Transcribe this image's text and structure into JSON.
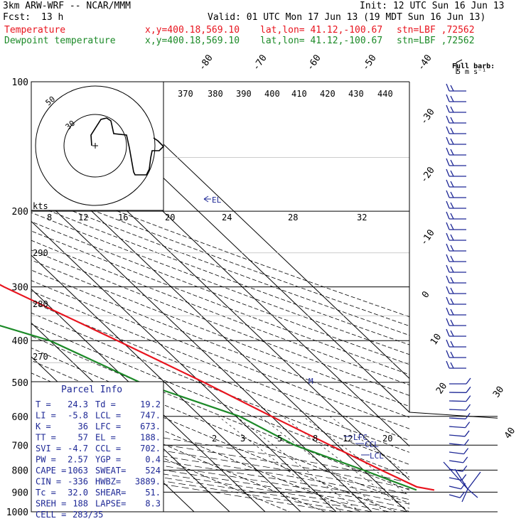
{
  "header": {
    "model": "3km ARW-WRF -- NCAR/MMM",
    "init": "Init: 12 UTC Sun 16 Jun 13",
    "fcst_label": "Fcst:",
    "fcst_value": "13 h",
    "valid": "Valid: 01 UTC Mon 17 Jun 13 (19 MDT Sun 16 Jun 13)",
    "temp_label": "Temperature",
    "dew_label": "Dewpoint temperature",
    "xy": "x,y=400.18,569.10",
    "latlon": "lat,lon= 41.12,-100.67",
    "stn": "stn=LBF ,72562",
    "full_barb": "Full barb:",
    "full_barb_value": "5 m s⁻¹"
  },
  "colors": {
    "temperature": "#e8141e",
    "dewpoint": "#1c8a28",
    "labels": "#1e2896",
    "red_text": "#e8141e",
    "green_text": "#1c8a28"
  },
  "chart_data": {
    "type": "line",
    "pressure_levels": [
      100,
      200,
      300,
      400,
      500,
      600,
      700,
      800,
      900,
      1000
    ],
    "isotherm_labels_top": [
      "-80",
      "-70",
      "-60",
      "-50",
      "-40"
    ],
    "isotherm_labels_right": [
      "-30",
      "-20",
      "-10",
      "0",
      "10",
      "20",
      "30",
      "40"
    ],
    "theta_labels": [
      "370",
      "380",
      "390",
      "400",
      "410",
      "420",
      "430",
      "440"
    ],
    "theta_labels_left": [
      "290",
      "280",
      "270"
    ],
    "mixing_ratio_labels": [
      "2",
      "3",
      "5",
      "8",
      "12",
      "20"
    ],
    "hodograph_speed_labels": [
      "8",
      "12",
      "16",
      "20",
      "24",
      "28",
      "32"
    ],
    "hodograph_ring_labels": [
      "50",
      "30"
    ],
    "hodograph_units": "kts",
    "annotations": [
      "EL",
      "LFC",
      "CCL",
      "LCL",
      "M"
    ],
    "series": [
      {
        "name": "Temperature",
        "points": [
          [
            100,
            -57
          ],
          [
            150,
            -53
          ],
          [
            175,
            -60
          ],
          [
            200,
            -56
          ],
          [
            250,
            -45
          ],
          [
            300,
            -37
          ],
          [
            400,
            -21
          ],
          [
            500,
            -9
          ],
          [
            600,
            0
          ],
          [
            700,
            8
          ],
          [
            800,
            15
          ],
          [
            875,
            20
          ],
          [
            890,
            24
          ]
        ]
      },
      {
        "name": "Dewpoint temperature",
        "points": [
          [
            100,
            -78
          ],
          [
            130,
            -85
          ],
          [
            175,
            -80
          ],
          [
            200,
            -77
          ],
          [
            250,
            -80
          ],
          [
            300,
            -70
          ],
          [
            350,
            -56
          ],
          [
            400,
            -40
          ],
          [
            500,
            -27
          ],
          [
            600,
            -9
          ],
          [
            700,
            -2
          ],
          [
            800,
            10
          ],
          [
            850,
            15
          ],
          [
            890,
            19
          ]
        ]
      }
    ]
  },
  "parcel_info": {
    "title": "Parcel Info",
    "rows": [
      [
        "T  =",
        "24.3",
        "Td =",
        "19.2"
      ],
      [
        "LI =",
        "-5.8",
        "LCL =",
        "747."
      ],
      [
        "K  =",
        "36",
        "LFC =",
        "673."
      ],
      [
        "TT =",
        "57",
        "EL =",
        "188."
      ],
      [
        "SVI =",
        "-4.7",
        "CCL =",
        "702."
      ],
      [
        "PW =",
        "2.57",
        "YGP =",
        "0.4"
      ],
      [
        "CAPE =",
        "1063",
        "SWEAT=",
        "524"
      ],
      [
        "CIN =",
        "-336",
        "HWBZ=",
        "3889."
      ],
      [
        "Tc =",
        "32.0",
        "SHEAR=",
        "51."
      ],
      [
        "SREH =",
        "188",
        "LAPSE=",
        "8.3"
      ],
      [
        "CELL =",
        "283/35",
        "",
        ""
      ]
    ]
  }
}
